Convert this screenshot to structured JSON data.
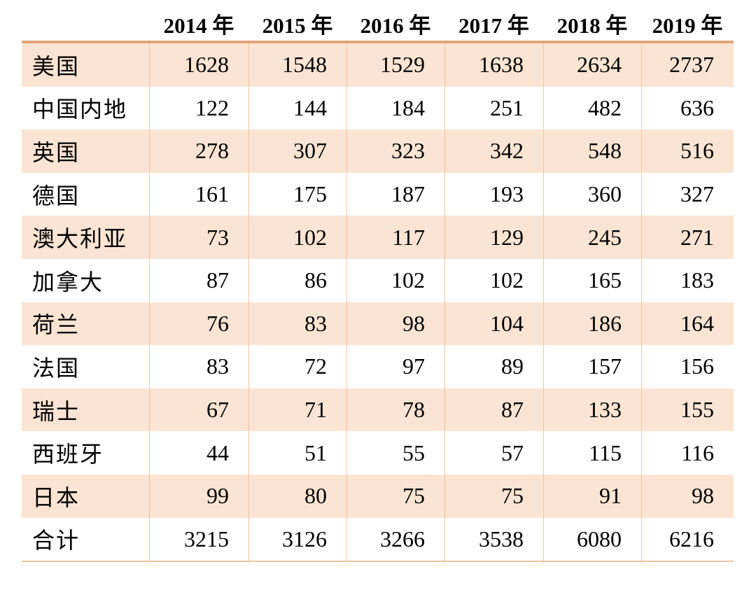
{
  "colors": {
    "row_highlight": "#fbe4d3",
    "row_plain": "#ffffff",
    "top_rule": "#e2a478",
    "grid_line": "#f2c3a2",
    "bottom_rule": "#ecc2a2",
    "text": "#000000"
  },
  "chart_data": {
    "type": "table",
    "columns": [
      "2014 年",
      "2015 年",
      "2016 年",
      "2017 年",
      "2018 年",
      "2019 年"
    ],
    "rows": [
      {
        "label": "美国",
        "values": [
          1628,
          1548,
          1529,
          1638,
          2634,
          2737
        ]
      },
      {
        "label": "中国内地",
        "values": [
          122,
          144,
          184,
          251,
          482,
          636
        ]
      },
      {
        "label": "英国",
        "values": [
          278,
          307,
          323,
          342,
          548,
          516
        ]
      },
      {
        "label": "德国",
        "values": [
          161,
          175,
          187,
          193,
          360,
          327
        ]
      },
      {
        "label": "澳大利亚",
        "values": [
          73,
          102,
          117,
          129,
          245,
          271
        ]
      },
      {
        "label": "加拿大",
        "values": [
          87,
          86,
          102,
          102,
          165,
          183
        ]
      },
      {
        "label": "荷兰",
        "values": [
          76,
          83,
          98,
          104,
          186,
          164
        ]
      },
      {
        "label": "法国",
        "values": [
          83,
          72,
          97,
          89,
          157,
          156
        ]
      },
      {
        "label": "瑞士",
        "values": [
          67,
          71,
          78,
          87,
          133,
          155
        ]
      },
      {
        "label": "西班牙",
        "values": [
          44,
          51,
          55,
          57,
          115,
          116
        ]
      },
      {
        "label": "日本",
        "values": [
          99,
          80,
          75,
          75,
          91,
          98
        ]
      },
      {
        "label": "合计",
        "values": [
          3215,
          3126,
          3266,
          3538,
          6080,
          6216
        ]
      }
    ],
    "layout": {
      "alternating_row_shading": "odd rows shaded peach starting with first data row",
      "grid": "vertical column separators only; thick top rule, thin bottom rule",
      "value_alignment": "right",
      "label_alignment": "left",
      "header_alignment": "center"
    }
  }
}
